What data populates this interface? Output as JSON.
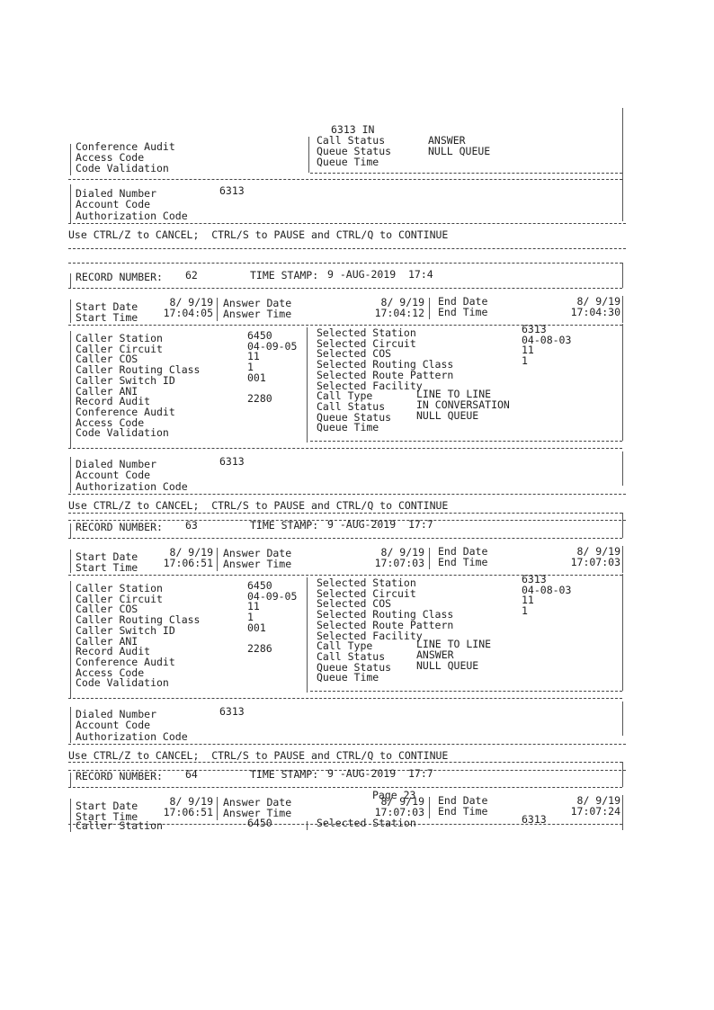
{
  "labels": {
    "record_number": "RECORD NUMBER:",
    "time_stamp": "TIME STAMP:",
    "start_date": "Start Date",
    "start_time": "Start Time",
    "answer_date": "Answer Date",
    "answer_time": "Answer Time",
    "end_date": "End Date",
    "end_time": "End Time",
    "left_fields": [
      "Caller Station",
      "Caller Circuit",
      "Caller COS",
      "Caller Routing Class",
      "Caller Switch ID",
      "Caller ANI",
      "Record Audit",
      "Conference Audit",
      "Access Code",
      "Code Validation"
    ],
    "right_fields": [
      "Selected Station",
      "Selected Circuit",
      "Selected COS",
      "Selected Routing Class",
      "Selected Route Pattern",
      "Selected Facility",
      "Call Type",
      "Call Status",
      "Queue Status",
      "Queue Time"
    ],
    "dialed_number": "Dialed Number",
    "account_code": "Account Code",
    "authorization_code": "Authorization Code",
    "control_hint": "Use CTRL/Z to CANCEL;  CTRL/S to PAUSE and CTRL/Q to CONTINUE"
  },
  "top_fragment": {
    "carry": "6313 IN",
    "right_fields": [
      "Call Status",
      "Queue Status",
      "Queue Time"
    ],
    "right_values": [
      "ANSWER",
      "NULL QUEUE",
      ""
    ],
    "left_fields": [
      "Conference Audit",
      "Access Code",
      "Code Validation"
    ],
    "dialed_number": "6313"
  },
  "records": [
    {
      "number": "62",
      "time_stamp": "9 -AUG-2019  17:4",
      "start_date": "8/ 9/19",
      "start_time": "17:04:05",
      "answer_date": "8/ 9/19",
      "answer_time": "17:04:12",
      "end_date": "8/ 9/19",
      "end_time": "17:04:30",
      "left_values": [
        "6450",
        "04-09-05",
        "11",
        "1",
        "001",
        "",
        "2280",
        "",
        "",
        ""
      ],
      "right_values": [
        "6313",
        "04-08-03",
        "11",
        "1",
        "",
        "",
        "LINE TO LINE",
        "IN CONVERSATION",
        "NULL QUEUE",
        ""
      ],
      "dialed_number": "6313"
    },
    {
      "number": "63",
      "time_stamp": "9 -AUG-2019  17:7",
      "start_date": "8/ 9/19",
      "start_time": "17:06:51",
      "answer_date": "8/ 9/19",
      "answer_time": "17:07:03",
      "end_date": "8/ 9/19",
      "end_time": "17:07:03",
      "left_values": [
        "6450",
        "04-09-05",
        "11",
        "1",
        "001",
        "",
        "2286",
        "",
        "",
        ""
      ],
      "right_values": [
        "6313",
        "04-08-03",
        "11",
        "1",
        "",
        "",
        "LINE TO LINE",
        "ANSWER",
        "NULL QUEUE",
        ""
      ],
      "dialed_number": "6313"
    },
    {
      "number": "64",
      "time_stamp": "9 -AUG-2019  17:7",
      "start_date": "8/ 9/19",
      "start_time": "17:06:51",
      "answer_date": "8/ 9/19",
      "answer_time": "17:07:03",
      "end_date": "8/ 9/19",
      "end_time": "17:07:24",
      "left_values": [
        "6450"
      ],
      "right_values": [
        "6313"
      ],
      "partial": true
    }
  ],
  "footer": {
    "page_label": "Page 23"
  }
}
